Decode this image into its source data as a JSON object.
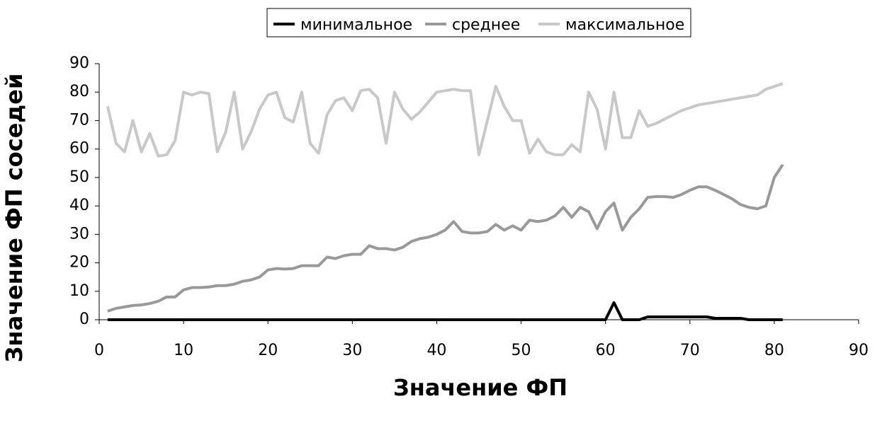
{
  "chart_data": {
    "type": "line",
    "xlabel": "Значение ФП",
    "ylabel": "Значение ФП соседей",
    "x": [
      1,
      2,
      3,
      4,
      5,
      6,
      7,
      8,
      9,
      10,
      11,
      12,
      13,
      14,
      15,
      16,
      17,
      18,
      19,
      20,
      21,
      22,
      23,
      24,
      25,
      26,
      27,
      28,
      29,
      30,
      31,
      32,
      33,
      34,
      35,
      36,
      37,
      38,
      39,
      40,
      41,
      42,
      43,
      44,
      45,
      46,
      47,
      48,
      49,
      50,
      51,
      52,
      53,
      54,
      55,
      56,
      57,
      58,
      59,
      60,
      61,
      62,
      63,
      64,
      65,
      66,
      67,
      68,
      69,
      70,
      71,
      72,
      73,
      74,
      75,
      76,
      77,
      78,
      79,
      80,
      81
    ],
    "series": [
      {
        "name": "минимальное",
        "color": "#000000",
        "values": [
          0,
          0,
          0,
          0,
          0,
          0,
          0,
          0,
          0,
          0,
          0,
          0,
          0,
          0,
          0,
          0,
          0,
          0,
          0,
          0,
          0,
          0,
          0,
          0,
          0,
          0,
          0,
          0,
          0,
          0,
          0,
          0,
          0,
          0,
          0,
          0,
          0,
          0,
          0,
          0,
          0,
          0,
          0,
          0,
          0,
          0,
          0,
          0,
          0,
          0,
          0,
          0,
          0,
          0,
          0,
          0,
          0,
          0,
          0,
          0,
          6,
          0,
          0,
          0,
          1,
          1,
          1,
          1,
          1,
          1,
          1,
          1,
          0.5,
          0.5,
          0.5,
          0.5,
          0,
          0,
          0,
          0,
          0
        ]
      },
      {
        "name": "среднее",
        "color": "#999999",
        "values": [
          3,
          4,
          4.5,
          5,
          5.2,
          5.7,
          6.5,
          8,
          8,
          10.5,
          11.3,
          11.3,
          11.5,
          12,
          12,
          12.5,
          13.5,
          14,
          15,
          17.5,
          18,
          17.8,
          18,
          19,
          19,
          19,
          22,
          21.5,
          22.5,
          23,
          23,
          26,
          25,
          25,
          24.5,
          25.5,
          27.5,
          28.5,
          29,
          30,
          31.5,
          34.5,
          31,
          30.5,
          30.5,
          31,
          33.5,
          31.5,
          33,
          31.5,
          35,
          34.5,
          35,
          36.5,
          39.5,
          36,
          39.5,
          38,
          32,
          38,
          41,
          31.5,
          36,
          39,
          43,
          43.3,
          43.3,
          43,
          44,
          45.5,
          46.7,
          46.7,
          45.5,
          44,
          42.5,
          40.5,
          39.5,
          39,
          40,
          50,
          54.5
        ]
      },
      {
        "name": "максимальное",
        "color": "#c8c8c8",
        "values": [
          75,
          62,
          59,
          70,
          59,
          65.5,
          57.5,
          58,
          63,
          80,
          79,
          80,
          79.5,
          59,
          66,
          80,
          60,
          66,
          74,
          79,
          80,
          71,
          69.5,
          80,
          62,
          58.5,
          72,
          77,
          78,
          73.5,
          80.5,
          81,
          78,
          62,
          80,
          74,
          70.5,
          73,
          76.5,
          80,
          80.5,
          81,
          80.5,
          80.5,
          58,
          70,
          82,
          75,
          70,
          70,
          58.5,
          63.5,
          59,
          58,
          58,
          61.5,
          59,
          80,
          74,
          60,
          80,
          64,
          64,
          73.5,
          68,
          69,
          70.5,
          72,
          73.5,
          74.5,
          75.5,
          76,
          76.5,
          77,
          77.5,
          78,
          78.5,
          79,
          81,
          82,
          83
        ]
      }
    ],
    "xlim": [
      0,
      90
    ],
    "xticks": [
      0,
      10,
      20,
      30,
      40,
      50,
      60,
      70,
      80,
      90
    ],
    "ylim": [
      0,
      90
    ],
    "yticks": [
      0,
      10,
      20,
      30,
      40,
      50,
      60,
      70,
      80,
      90
    ],
    "legend": "top"
  }
}
